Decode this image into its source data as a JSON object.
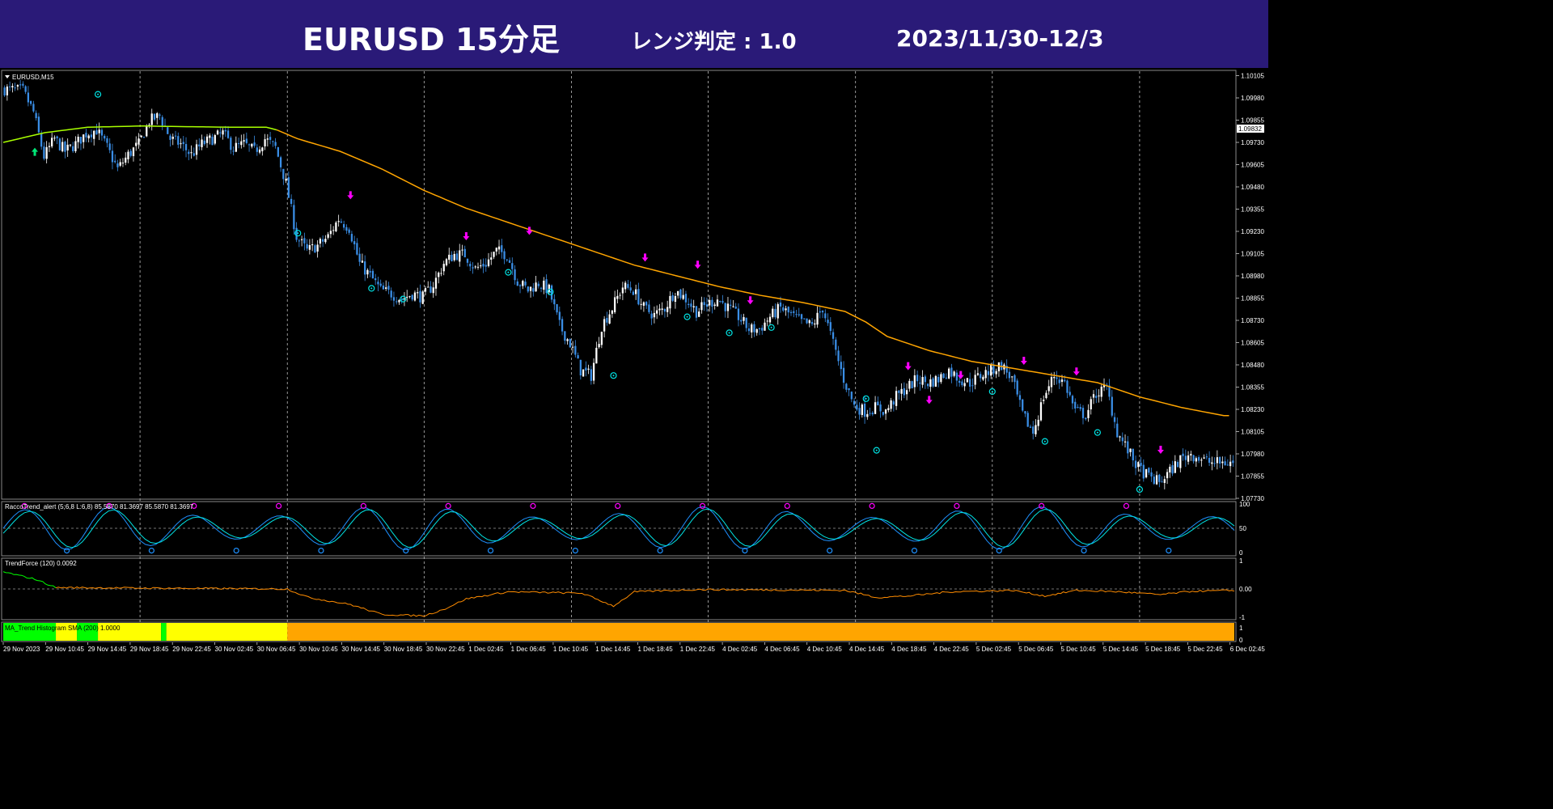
{
  "header": {
    "title": "EURUSD 15分足",
    "range_label": "レンジ判定 : 1.0",
    "date_range": "2023/11/30-12/3"
  },
  "colors": {
    "header_bg": "#2a1a78",
    "bull_candle": "#ffffff",
    "bear_candle": "#3a8ee6",
    "ma": "#ffa500",
    "ma_early": "#a8ff00",
    "buy_arrow": "#00e676",
    "sell_arrow": "#ff00ff",
    "circle_signal": "#00e5e5",
    "rt_line1": "#1e90ff",
    "rt_line2": "#00e5e5",
    "trend_force_neg": "#ff8c00",
    "trend_force_pos": "#00ff00",
    "hist_green": "#00ff00",
    "hist_yellow": "#ffff00",
    "hist_orange": "#ffa500"
  },
  "chart_data": [
    {
      "type": "candlestick",
      "title": "EURUSD,M15",
      "price_label": "1.09832",
      "ylim": [
        1.0773,
        1.1013
      ],
      "y_ticks": [
        "1.10105",
        "1.09980",
        "1.09855",
        "1.09730",
        "1.09605",
        "1.09480",
        "1.09355",
        "1.09230",
        "1.09105",
        "1.08980",
        "1.08855",
        "1.08730",
        "1.08605",
        "1.08480",
        "1.08355",
        "1.08230",
        "1.08105",
        "1.07980",
        "1.07855",
        "1.07730"
      ],
      "x_ticks": [
        "29 Nov 2023",
        "29 Nov 10:45",
        "29 Nov 14:45",
        "29 Nov 18:45",
        "29 Nov 22:45",
        "30 Nov 02:45",
        "30 Nov 06:45",
        "30 Nov 10:45",
        "30 Nov 14:45",
        "30 Nov 18:45",
        "30 Nov 22:45",
        "1 Dec 02:45",
        "1 Dec 06:45",
        "1 Dec 10:45",
        "1 Dec 14:45",
        "1 Dec 18:45",
        "1 Dec 22:45",
        "4 Dec 02:45",
        "4 Dec 06:45",
        "4 Dec 10:45",
        "4 Dec 14:45",
        "4 Dec 18:45",
        "4 Dec 22:45",
        "5 Dec 02:45",
        "5 Dec 06:45",
        "5 Dec 10:45",
        "5 Dec 14:45",
        "5 Dec 18:45",
        "5 Dec 22:45",
        "6 Dec 02:45"
      ],
      "price_path": [
        [
          0,
          1.1003
        ],
        [
          2,
          1.1002
        ],
        [
          3,
          1.099
        ],
        [
          4,
          1.0965
        ],
        [
          5,
          1.0975
        ],
        [
          6,
          1.0968
        ],
        [
          7,
          1.0972
        ],
        [
          8,
          1.0978
        ],
        [
          9,
          1.098
        ],
        [
          10,
          1.097
        ],
        [
          11,
          1.0958
        ],
        [
          12,
          1.0966
        ],
        [
          13,
          1.0972
        ],
        [
          14,
          1.0985
        ],
        [
          15,
          1.0988
        ],
        [
          16,
          1.0975
        ],
        [
          17,
          1.0972
        ],
        [
          18,
          1.0966
        ],
        [
          19,
          1.0972
        ],
        [
          20,
          1.0975
        ],
        [
          21,
          1.0978
        ],
        [
          22,
          1.097
        ],
        [
          23,
          1.0972
        ],
        [
          24,
          1.0968
        ],
        [
          25,
          1.0975
        ],
        [
          26,
          1.097
        ],
        [
          27,
          1.095
        ],
        [
          28,
          1.092
        ],
        [
          29,
          1.0912
        ],
        [
          30,
          1.0915
        ],
        [
          31,
          1.092
        ],
        [
          32,
          1.093
        ],
        [
          33,
          1.0925
        ],
        [
          34,
          1.0905
        ],
        [
          35,
          1.0898
        ],
        [
          36,
          1.089
        ],
        [
          37,
          1.0888
        ],
        [
          38,
          1.0885
        ],
        [
          39,
          1.0888
        ],
        [
          40,
          1.0886
        ],
        [
          41,
          1.0893
        ],
        [
          42,
          1.0905
        ],
        [
          43,
          1.091
        ],
        [
          44,
          1.091
        ],
        [
          45,
          1.0902
        ],
        [
          46,
          1.0905
        ],
        [
          47,
          1.0912
        ],
        [
          48,
          1.091
        ],
        [
          49,
          1.0895
        ],
        [
          50,
          1.089
        ],
        [
          51,
          1.0894
        ],
        [
          52,
          1.089
        ],
        [
          53,
          1.087
        ],
        [
          54,
          1.086
        ],
        [
          55,
          1.0845
        ],
        [
          56,
          1.0842
        ],
        [
          57,
          1.087
        ],
        [
          58,
          1.088
        ],
        [
          59,
          1.0892
        ],
        [
          60,
          1.089
        ],
        [
          61,
          1.088
        ],
        [
          62,
          1.0876
        ],
        [
          63,
          1.088
        ],
        [
          64,
          1.089
        ],
        [
          65,
          1.0885
        ],
        [
          66,
          1.0878
        ],
        [
          67,
          1.0882
        ],
        [
          68,
          1.0885
        ],
        [
          69,
          1.088
        ],
        [
          70,
          1.0875
        ],
        [
          71,
          1.0868
        ],
        [
          72,
          1.0868
        ],
        [
          73,
          1.0875
        ],
        [
          74,
          1.088
        ],
        [
          75,
          1.0876
        ],
        [
          76,
          1.0872
        ],
        [
          77,
          1.087
        ],
        [
          78,
          1.088
        ],
        [
          79,
          1.086
        ],
        [
          80,
          1.084
        ],
        [
          81,
          1.0825
        ],
        [
          82,
          1.0822
        ],
        [
          83,
          1.0824
        ],
        [
          84,
          1.0822
        ],
        [
          85,
          1.083
        ],
        [
          86,
          1.0835
        ],
        [
          87,
          1.084
        ],
        [
          88,
          1.0838
        ],
        [
          89,
          1.084
        ],
        [
          90,
          1.0845
        ],
        [
          91,
          1.084
        ],
        [
          92,
          1.0838
        ],
        [
          93,
          1.0842
        ],
        [
          94,
          1.0845
        ],
        [
          95,
          1.0848
        ],
        [
          96,
          1.084
        ],
        [
          97,
          1.082
        ],
        [
          98,
          1.081
        ],
        [
          99,
          1.083
        ],
        [
          100,
          1.0842
        ],
        [
          101,
          1.0838
        ],
        [
          102,
          1.0822
        ],
        [
          103,
          1.082
        ],
        [
          104,
          1.0832
        ],
        [
          105,
          1.0835
        ],
        [
          106,
          1.081
        ],
        [
          107,
          1.08
        ],
        [
          108,
          1.079
        ],
        [
          109,
          1.0785
        ],
        [
          110,
          1.0782
        ],
        [
          111,
          1.0788
        ],
        [
          112,
          1.0795
        ],
        [
          113,
          1.0798
        ],
        [
          114,
          1.0795
        ],
        [
          115,
          1.0793
        ],
        [
          116,
          1.0793
        ]
      ],
      "ma_path": [
        [
          0,
          1.0973
        ],
        [
          4,
          1.09785
        ],
        [
          8,
          1.09815
        ],
        [
          13,
          1.09822
        ],
        [
          18,
          1.09818
        ],
        [
          22,
          1.09815
        ],
        [
          25,
          1.09815
        ],
        [
          26,
          1.098
        ],
        [
          28,
          1.0975
        ],
        [
          32,
          1.0968
        ],
        [
          36,
          1.0958
        ],
        [
          40,
          1.0946
        ],
        [
          44,
          1.0936
        ],
        [
          48,
          1.0928
        ],
        [
          52,
          1.092
        ],
        [
          56,
          1.0912
        ],
        [
          60,
          1.0904
        ],
        [
          64,
          1.0898
        ],
        [
          68,
          1.0892
        ],
        [
          72,
          1.0887
        ],
        [
          76,
          1.0883
        ],
        [
          80,
          1.0878
        ],
        [
          82,
          1.0872
        ],
        [
          84,
          1.0864
        ],
        [
          88,
          1.0856
        ],
        [
          92,
          1.085
        ],
        [
          96,
          1.0846
        ],
        [
          100,
          1.0842
        ],
        [
          104,
          1.0838
        ],
        [
          106,
          1.0834
        ],
        [
          108,
          1.083
        ],
        [
          112,
          1.0824
        ],
        [
          116,
          1.08195
        ]
      ],
      "buy_arrows": [
        [
          3,
          1.097
        ]
      ],
      "sell_arrows": [
        [
          33,
          1.0941
        ],
        [
          44,
          1.0918
        ],
        [
          50,
          1.0921
        ],
        [
          61,
          1.0906
        ],
        [
          66,
          1.0902
        ],
        [
          71,
          1.0882
        ],
        [
          86,
          1.0845
        ],
        [
          88,
          1.0826
        ],
        [
          91,
          1.084
        ],
        [
          97,
          1.0848
        ],
        [
          102,
          1.0842
        ],
        [
          110,
          1.0798
        ]
      ],
      "circles": [
        [
          9,
          1.1
        ],
        [
          28,
          1.0922
        ],
        [
          35,
          1.0891
        ],
        [
          38,
          1.0885
        ],
        [
          48,
          1.09
        ],
        [
          52,
          1.0889
        ],
        [
          58,
          1.0842
        ],
        [
          65,
          1.0875
        ],
        [
          69,
          1.0866
        ],
        [
          73,
          1.0869
        ],
        [
          82,
          1.0829
        ],
        [
          83,
          1.08
        ],
        [
          94,
          1.0833
        ],
        [
          99,
          1.0805
        ],
        [
          104,
          1.081
        ],
        [
          108,
          1.0778
        ]
      ]
    },
    {
      "type": "line",
      "title": "RaccoTrend_alert (5;6,8 L:6,8) 85.5870 81.3697 85.5870 81.3697",
      "ylim": [
        0,
        100
      ],
      "y_ticks": [
        "100",
        "50",
        "0"
      ]
    },
    {
      "type": "line",
      "title": "TrendForce (120) 0.0092",
      "ylim": [
        -1,
        1
      ],
      "y_ticks": [
        "1",
        "0.00",
        "-1"
      ]
    },
    {
      "type": "bar",
      "title": "MA_Trend Histogram SMA (200) 1.0000",
      "ylim": [
        0,
        1
      ],
      "y_ticks": [
        "1",
        "0"
      ],
      "segments": [
        {
          "from": 0,
          "to": 5,
          "color": "green"
        },
        {
          "from": 5,
          "to": 7,
          "color": "yellow"
        },
        {
          "from": 7,
          "to": 9,
          "color": "green"
        },
        {
          "from": 9,
          "to": 15,
          "color": "yellow"
        },
        {
          "from": 15,
          "to": 15.5,
          "color": "green"
        },
        {
          "from": 15.5,
          "to": 27,
          "color": "yellow"
        },
        {
          "from": 27,
          "to": 117,
          "color": "orange"
        }
      ]
    }
  ]
}
